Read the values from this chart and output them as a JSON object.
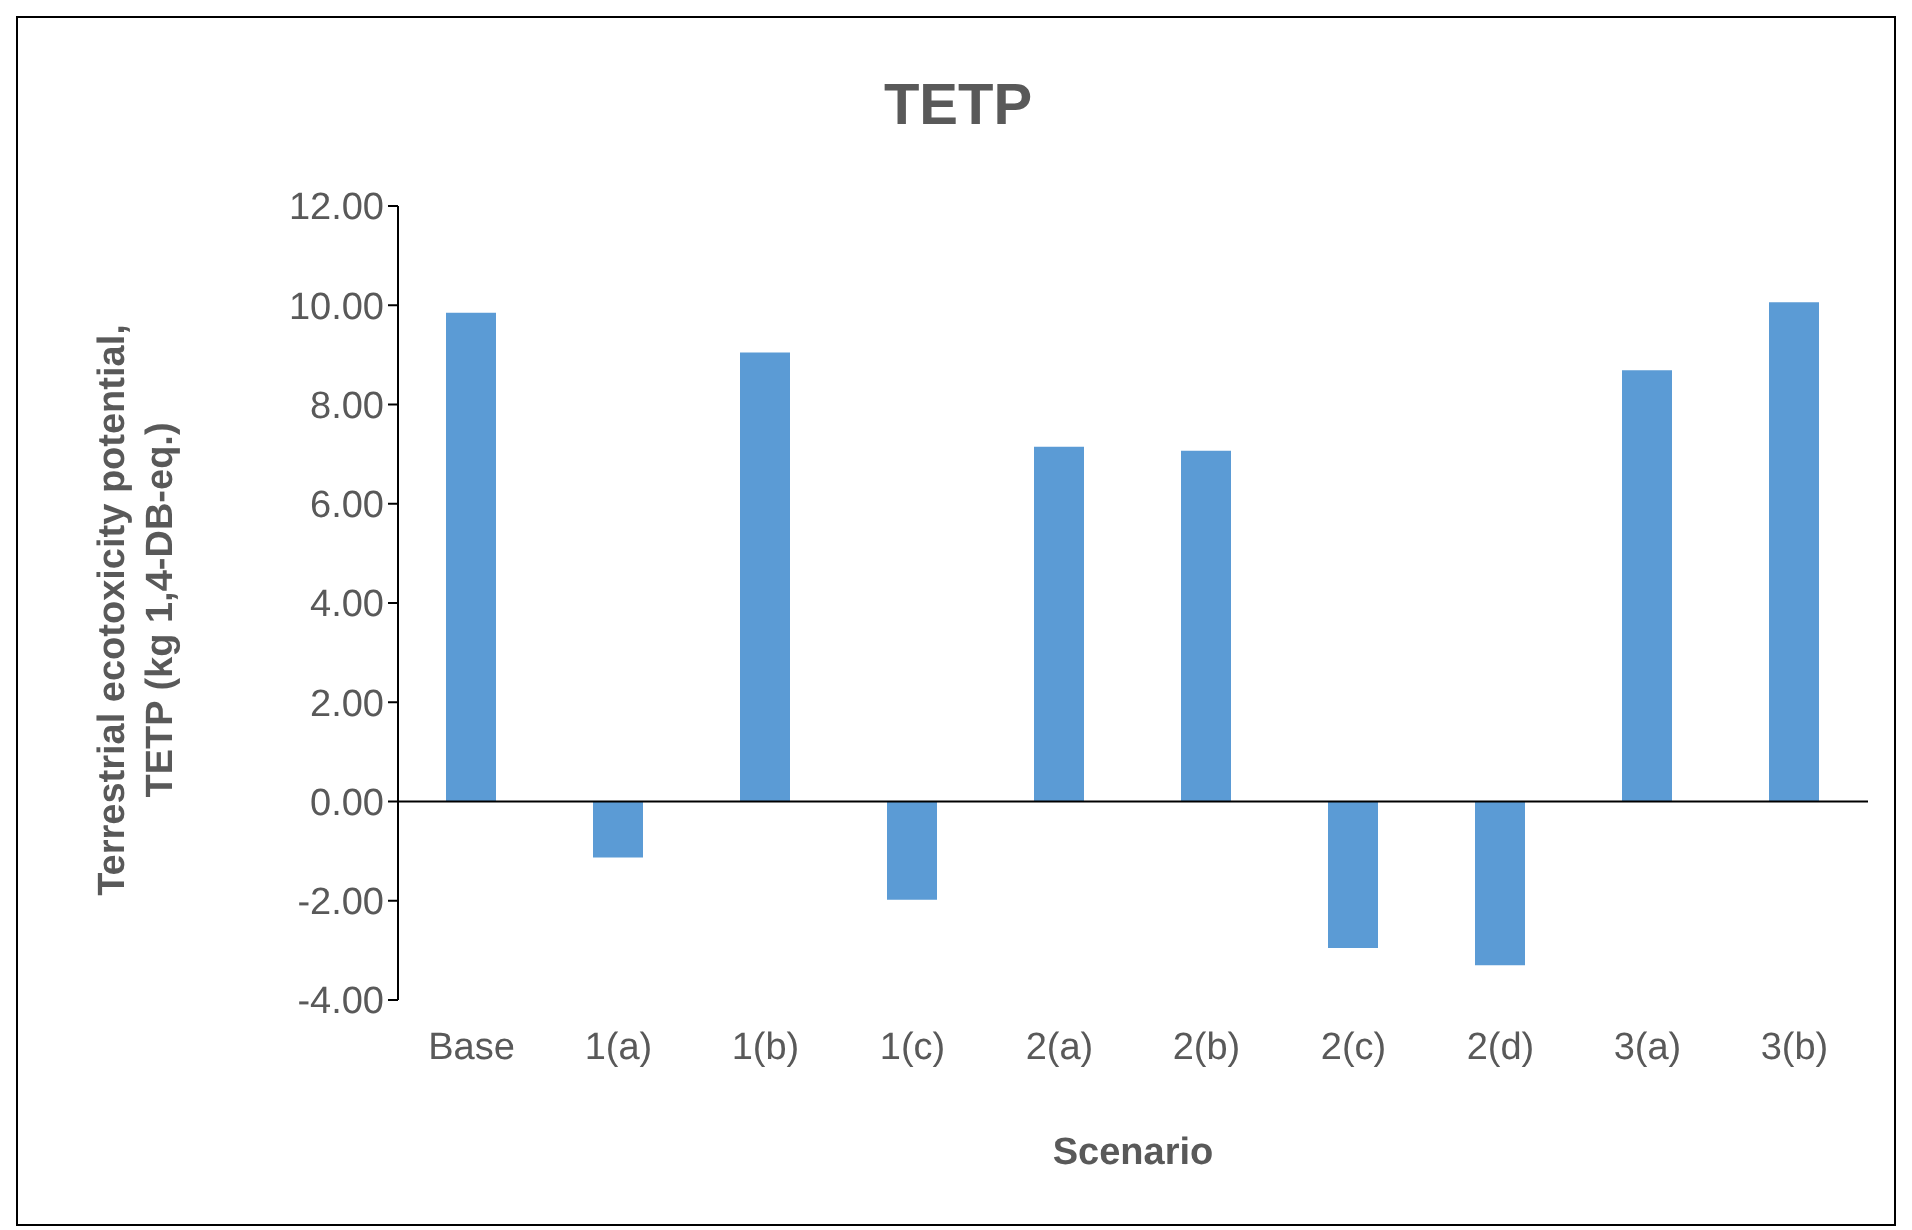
{
  "chart_data": {
    "type": "bar",
    "title": "TETP",
    "xlabel": "Scenario",
    "ylabel": "Terrestrial ecotoxicity potential, TETP (kg 1,4-DB-eq.)",
    "categories": [
      "Base",
      "1(a)",
      "1(b)",
      "1(c)",
      "2(a)",
      "2(b)",
      "2(c)",
      "2(d)",
      "3(a)",
      "3(b)"
    ],
    "values": [
      9.85,
      -1.13,
      9.05,
      -1.98,
      7.15,
      7.07,
      -2.95,
      -3.3,
      8.69,
      10.06
    ],
    "color": "#5b9bd5",
    "ylim": [
      -4,
      12
    ],
    "yticks": [
      {
        "value": -4,
        "label": "-4.00"
      },
      {
        "value": -2,
        "label": "-2.00"
      },
      {
        "value": 0,
        "label": "0.00"
      },
      {
        "value": 2,
        "label": "2.00"
      },
      {
        "value": 4,
        "label": "4.00"
      },
      {
        "value": 6,
        "label": "6.00"
      },
      {
        "value": 8,
        "label": "8.00"
      },
      {
        "value": 10,
        "label": "10.00"
      },
      {
        "value": 12,
        "label": "12.00"
      }
    ],
    "ref_lines": [
      {
        "axis": "y",
        "value": 0,
        "color": "#000000"
      }
    ],
    "legend": false
  }
}
